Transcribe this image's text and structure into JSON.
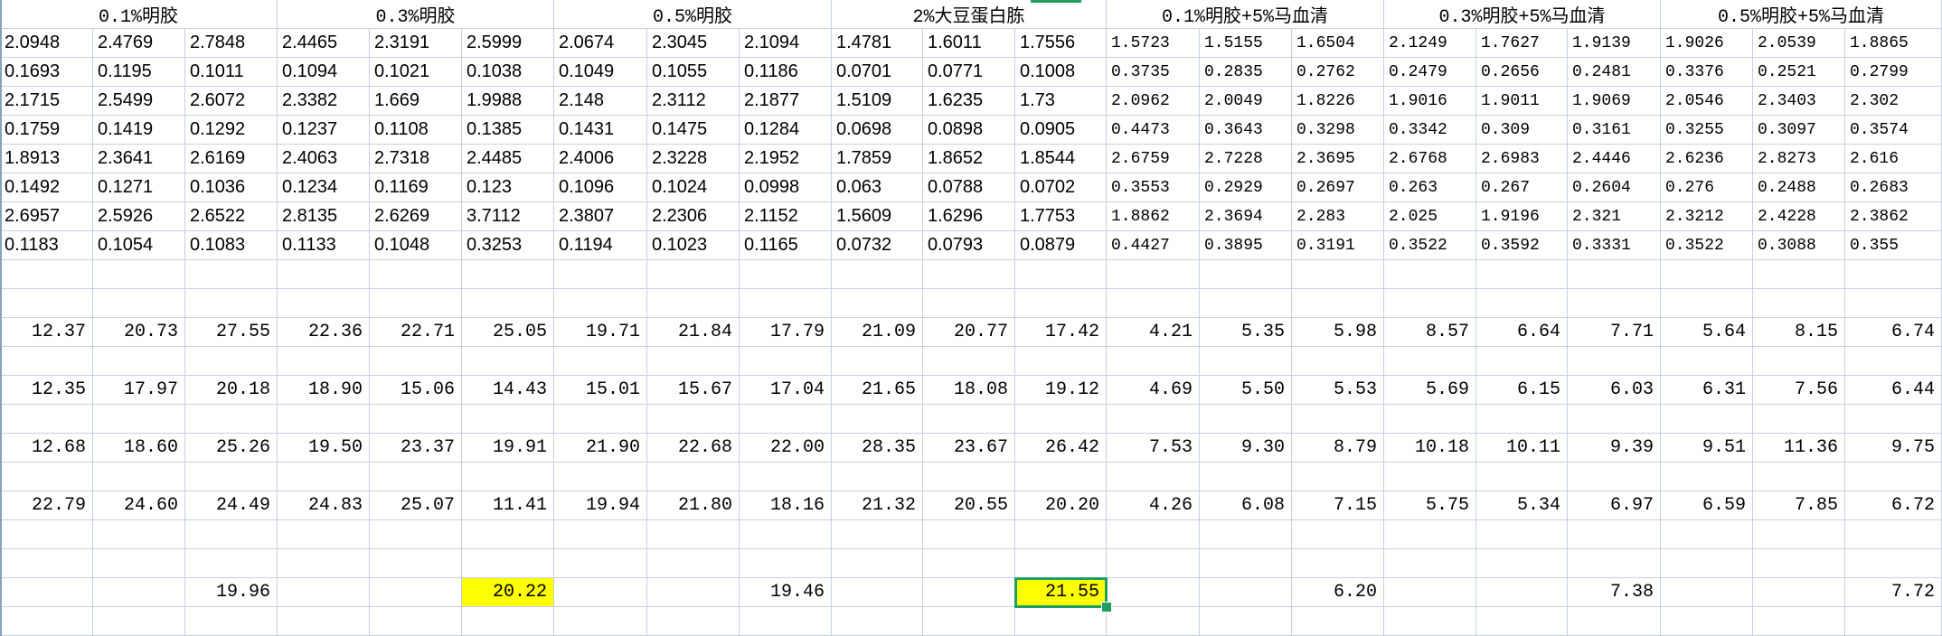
{
  "header": [
    "0.1%明胶",
    "0.3%明胶",
    "0.5%明胶",
    "2%大豆蛋白胨",
    "0.1%明胶+5%马血清",
    "0.3%明胶+5%马血清",
    "0.5%明胶+5%马血清"
  ],
  "raw_rows": [
    [
      "2.0948",
      "2.4769",
      "2.7848",
      "2.4465",
      "2.3191",
      "2.5999",
      "2.0674",
      "2.3045",
      "2.1094",
      "1.4781",
      "1.6011",
      "1.7556",
      "1.5723",
      "1.5155",
      "1.6504",
      "2.1249",
      "1.7627",
      "1.9139",
      "1.9026",
      "2.0539",
      "1.8865"
    ],
    [
      "0.1693",
      "0.1195",
      "0.1011",
      "0.1094",
      "0.1021",
      "0.1038",
      "0.1049",
      "0.1055",
      "0.1186",
      "0.0701",
      "0.0771",
      "0.1008",
      "0.3735",
      "0.2835",
      "0.2762",
      "0.2479",
      "0.2656",
      "0.2481",
      "0.3376",
      "0.2521",
      "0.2799"
    ],
    [
      "2.1715",
      "2.5499",
      "2.6072",
      "2.3382",
      "1.669",
      "1.9988",
      "2.148",
      "2.3112",
      "2.1877",
      "1.5109",
      "1.6235",
      "1.73",
      "2.0962",
      "2.0049",
      "1.8226",
      "1.9016",
      "1.9011",
      "1.9069",
      "2.0546",
      "2.3403",
      "2.302"
    ],
    [
      "0.1759",
      "0.1419",
      "0.1292",
      "0.1237",
      "0.1108",
      "0.1385",
      "0.1431",
      "0.1475",
      "0.1284",
      "0.0698",
      "0.0898",
      "0.0905",
      "0.4473",
      "0.3643",
      "0.3298",
      "0.3342",
      "0.309",
      "0.3161",
      "0.3255",
      "0.3097",
      "0.3574"
    ],
    [
      "1.8913",
      "2.3641",
      "2.6169",
      "2.4063",
      "2.7318",
      "2.4485",
      "2.4006",
      "2.3228",
      "2.1952",
      "1.7859",
      "1.8652",
      "1.8544",
      "2.6759",
      "2.7228",
      "2.3695",
      "2.6768",
      "2.6983",
      "2.4446",
      "2.6236",
      "2.8273",
      "2.616"
    ],
    [
      "0.1492",
      "0.1271",
      "0.1036",
      "0.1234",
      "0.1169",
      "0.123",
      "0.1096",
      "0.1024",
      "0.0998",
      "0.063",
      "0.0788",
      "0.0702",
      "0.3553",
      "0.2929",
      "0.2697",
      "0.263",
      "0.267",
      "0.2604",
      "0.276",
      "0.2488",
      "0.2683"
    ],
    [
      "2.6957",
      "2.5926",
      "2.6522",
      "2.8135",
      "2.6269",
      "3.7112",
      "2.3807",
      "2.2306",
      "2.1152",
      "1.5609",
      "1.6296",
      "1.7753",
      "1.8862",
      "2.3694",
      "2.283",
      "2.025",
      "1.9196",
      "2.321",
      "2.3212",
      "2.4228",
      "2.3862"
    ],
    [
      "0.1183",
      "0.1054",
      "0.1083",
      "0.1133",
      "0.1048",
      "0.3253",
      "0.1194",
      "0.1023",
      "0.1165",
      "0.0732",
      "0.0793",
      "0.0879",
      "0.4427",
      "0.3895",
      "0.3191",
      "0.3522",
      "0.3592",
      "0.3331",
      "0.3522",
      "0.3088",
      "0.355"
    ]
  ],
  "calc_rows": [
    [
      "12.37",
      "20.73",
      "27.55",
      "22.36",
      "22.71",
      "25.05",
      "19.71",
      "21.84",
      "17.79",
      "21.09",
      "20.77",
      "17.42",
      "4.21",
      "5.35",
      "5.98",
      "8.57",
      "6.64",
      "7.71",
      "5.64",
      "8.15",
      "6.74"
    ],
    [
      "12.35",
      "17.97",
      "20.18",
      "18.90",
      "15.06",
      "14.43",
      "15.01",
      "15.67",
      "17.04",
      "21.65",
      "18.08",
      "19.12",
      "4.69",
      "5.50",
      "5.53",
      "5.69",
      "6.15",
      "6.03",
      "6.31",
      "7.56",
      "6.44"
    ],
    [
      "12.68",
      "18.60",
      "25.26",
      "19.50",
      "23.37",
      "19.91",
      "21.90",
      "22.68",
      "22.00",
      "28.35",
      "23.67",
      "26.42",
      "7.53",
      "9.30",
      "8.79",
      "10.18",
      "10.11",
      "9.39",
      "9.51",
      "11.36",
      "9.75"
    ],
    [
      "22.79",
      "24.60",
      "24.49",
      "24.83",
      "25.07",
      "11.41",
      "19.94",
      "21.80",
      "18.16",
      "21.32",
      "20.55",
      "20.20",
      "4.26",
      "6.08",
      "7.15",
      "5.75",
      "5.34",
      "6.97",
      "6.59",
      "7.85",
      "6.72"
    ]
  ],
  "avg_row": [
    "",
    "",
    "19.96",
    "",
    "",
    "20.22",
    "",
    "",
    "19.46",
    "",
    "",
    "21.55",
    "",
    "",
    "6.20",
    "",
    "",
    "7.38",
    "",
    "",
    "7.72"
  ],
  "highlight_color": "#ffff00",
  "selection_color": "#1f9e5f",
  "gridline_color": "#c5d0e2"
}
